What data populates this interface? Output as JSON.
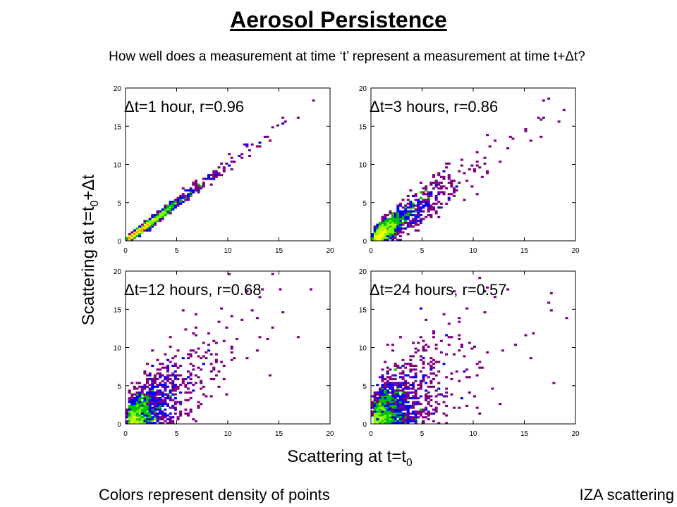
{
  "slide": {
    "title": "Aerosol Persistence",
    "subtitle_pre": "How well does a measurement at time ‘t’ represent a measurement at time t+",
    "subtitle_delta": "Δ",
    "subtitle_post": "t?",
    "ylabel_pre": "Scattering at t=t",
    "ylabel_sub": "0",
    "ylabel_post": "+Δt",
    "xlabel_pre": "Scattering at t=t",
    "xlabel_sub": "0",
    "footer_left": "Colors represent density of points",
    "footer_right": "IZA scattering"
  },
  "chart_data": [
    {
      "type": "heatmap",
      "panel": "top-left",
      "annotation": "Δt=1 hour, r=0.96",
      "lag_hours": 1,
      "r": 0.96,
      "xlim": [
        0,
        20
      ],
      "ylim": [
        0,
        20
      ],
      "xticks": [
        0,
        5,
        10,
        15,
        20
      ],
      "yticks": [
        0,
        5,
        10,
        15,
        20
      ]
    },
    {
      "type": "heatmap",
      "panel": "top-right",
      "annotation": "Δt=3 hours, r=0.86",
      "lag_hours": 3,
      "r": 0.86,
      "xlim": [
        0,
        20
      ],
      "ylim": [
        0,
        20
      ],
      "xticks": [
        0,
        5,
        10,
        15,
        20
      ],
      "yticks": [
        0,
        5,
        10,
        15,
        20
      ]
    },
    {
      "type": "heatmap",
      "panel": "bottom-left",
      "annotation": "Δt=12 hours, r=0.68",
      "lag_hours": 12,
      "r": 0.68,
      "xlim": [
        0,
        20
      ],
      "ylim": [
        0,
        20
      ],
      "xticks": [
        0,
        5,
        10,
        15,
        20
      ],
      "yticks": [
        0,
        5,
        10,
        15,
        20
      ]
    },
    {
      "type": "heatmap",
      "panel": "bottom-right",
      "annotation": "Δt=24 hours, r=0.57",
      "lag_hours": 24,
      "r": 0.57,
      "xlim": [
        0,
        20
      ],
      "ylim": [
        0,
        20
      ],
      "xticks": [
        0,
        5,
        10,
        15,
        20
      ],
      "yticks": [
        0,
        5,
        10,
        15,
        20
      ]
    }
  ],
  "density_colors": [
    "#800080",
    "#0000ff",
    "#00c000",
    "#80ff00",
    "#ffff00",
    "#ffa000",
    "#ff2000"
  ]
}
